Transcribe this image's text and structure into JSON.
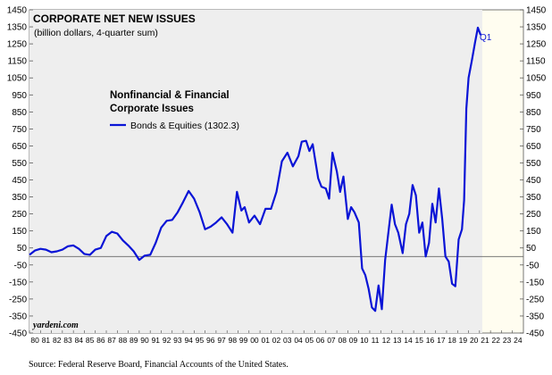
{
  "chart_data": {
    "type": "area",
    "title": "CORPORATE NET NEW ISSUES",
    "subtitle": "(billion dollars, 4-quarter sum)",
    "legend_heading_lines": [
      "Nonfinancial & Financial",
      "Corporate Issues"
    ],
    "series": [
      {
        "name": "Bonds & Equities (1302.3)",
        "color": "#0a14d6"
      }
    ],
    "end_annotation": "Q1",
    "watermark": "yardeni.com",
    "ylim": [
      -450,
      1450
    ],
    "y_ticks": [
      -450,
      -350,
      -250,
      -150,
      -50,
      50,
      150,
      250,
      350,
      450,
      550,
      650,
      750,
      850,
      950,
      1050,
      1150,
      1250,
      1350,
      1450
    ],
    "x_tick_labels": [
      "80",
      "81",
      "82",
      "83",
      "84",
      "85",
      "86",
      "87",
      "88",
      "89",
      "90",
      "91",
      "92",
      "93",
      "94",
      "95",
      "96",
      "97",
      "98",
      "99",
      "00",
      "01",
      "02",
      "03",
      "04",
      "05",
      "06",
      "07",
      "08",
      "09",
      "10",
      "11",
      "12",
      "13",
      "14",
      "15",
      "16",
      "17",
      "18",
      "19",
      "20",
      "21",
      "22",
      "23",
      "24"
    ],
    "xlim": [
      1980,
      2025
    ],
    "shaded_end": 2021.25,
    "zero_line": 0,
    "grid": false,
    "legend_position": "upper-left",
    "points": [
      [
        1980.0,
        10
      ],
      [
        1980.5,
        35
      ],
      [
        1981.0,
        45
      ],
      [
        1981.5,
        40
      ],
      [
        1982.0,
        25
      ],
      [
        1982.5,
        30
      ],
      [
        1983.0,
        40
      ],
      [
        1983.5,
        60
      ],
      [
        1984.0,
        65
      ],
      [
        1984.5,
        45
      ],
      [
        1985.0,
        15
      ],
      [
        1985.5,
        10
      ],
      [
        1986.0,
        40
      ],
      [
        1986.5,
        50
      ],
      [
        1987.0,
        120
      ],
      [
        1987.5,
        145
      ],
      [
        1988.0,
        135
      ],
      [
        1988.5,
        95
      ],
      [
        1989.0,
        65
      ],
      [
        1989.5,
        30
      ],
      [
        1990.0,
        -20
      ],
      [
        1990.5,
        5
      ],
      [
        1991.0,
        10
      ],
      [
        1991.5,
        80
      ],
      [
        1992.0,
        170
      ],
      [
        1992.5,
        210
      ],
      [
        1993.0,
        215
      ],
      [
        1993.5,
        260
      ],
      [
        1994.0,
        320
      ],
      [
        1994.5,
        385
      ],
      [
        1995.0,
        340
      ],
      [
        1995.5,
        260
      ],
      [
        1996.0,
        160
      ],
      [
        1996.5,
        175
      ],
      [
        1997.0,
        200
      ],
      [
        1997.5,
        230
      ],
      [
        1998.0,
        190
      ],
      [
        1998.5,
        140
      ],
      [
        1998.9,
        380
      ],
      [
        1999.3,
        270
      ],
      [
        1999.6,
        290
      ],
      [
        2000.0,
        200
      ],
      [
        2000.5,
        240
      ],
      [
        2001.0,
        190
      ],
      [
        2001.5,
        280
      ],
      [
        2002.0,
        280
      ],
      [
        2002.5,
        380
      ],
      [
        2003.0,
        560
      ],
      [
        2003.5,
        610
      ],
      [
        2004.0,
        530
      ],
      [
        2004.5,
        590
      ],
      [
        2004.8,
        675
      ],
      [
        2005.2,
        680
      ],
      [
        2005.5,
        620
      ],
      [
        2005.8,
        660
      ],
      [
        2006.0,
        580
      ],
      [
        2006.3,
        460
      ],
      [
        2006.6,
        410
      ],
      [
        2007.0,
        400
      ],
      [
        2007.3,
        340
      ],
      [
        2007.6,
        610
      ],
      [
        2008.0,
        500
      ],
      [
        2008.3,
        380
      ],
      [
        2008.6,
        470
      ],
      [
        2009.0,
        220
      ],
      [
        2009.3,
        290
      ],
      [
        2009.6,
        260
      ],
      [
        2010.0,
        200
      ],
      [
        2010.3,
        -70
      ],
      [
        2010.6,
        -110
      ],
      [
        2010.9,
        -190
      ],
      [
        2011.2,
        -300
      ],
      [
        2011.5,
        -320
      ],
      [
        2011.8,
        -170
      ],
      [
        2012.1,
        -310
      ],
      [
        2012.4,
        -20
      ],
      [
        2012.7,
        140
      ],
      [
        2013.0,
        305
      ],
      [
        2013.3,
        190
      ],
      [
        2013.6,
        140
      ],
      [
        2014.0,
        20
      ],
      [
        2014.3,
        190
      ],
      [
        2014.6,
        250
      ],
      [
        2014.9,
        420
      ],
      [
        2015.2,
        360
      ],
      [
        2015.5,
        140
      ],
      [
        2015.8,
        200
      ],
      [
        2016.1,
        0
      ],
      [
        2016.4,
        80
      ],
      [
        2016.7,
        310
      ],
      [
        2017.0,
        200
      ],
      [
        2017.3,
        400
      ],
      [
        2017.6,
        220
      ],
      [
        2017.9,
        0
      ],
      [
        2018.2,
        -30
      ],
      [
        2018.5,
        -160
      ],
      [
        2018.8,
        -175
      ],
      [
        2019.1,
        100
      ],
      [
        2019.4,
        160
      ],
      [
        2019.6,
        330
      ],
      [
        2019.8,
        870
      ],
      [
        2020.0,
        1050
      ],
      [
        2020.3,
        1150
      ],
      [
        2020.6,
        1260
      ],
      [
        2020.85,
        1345
      ],
      [
        2021.1,
        1302
      ]
    ]
  },
  "source": "Source: Federal Reserve Board, Financial Accounts of the United States."
}
